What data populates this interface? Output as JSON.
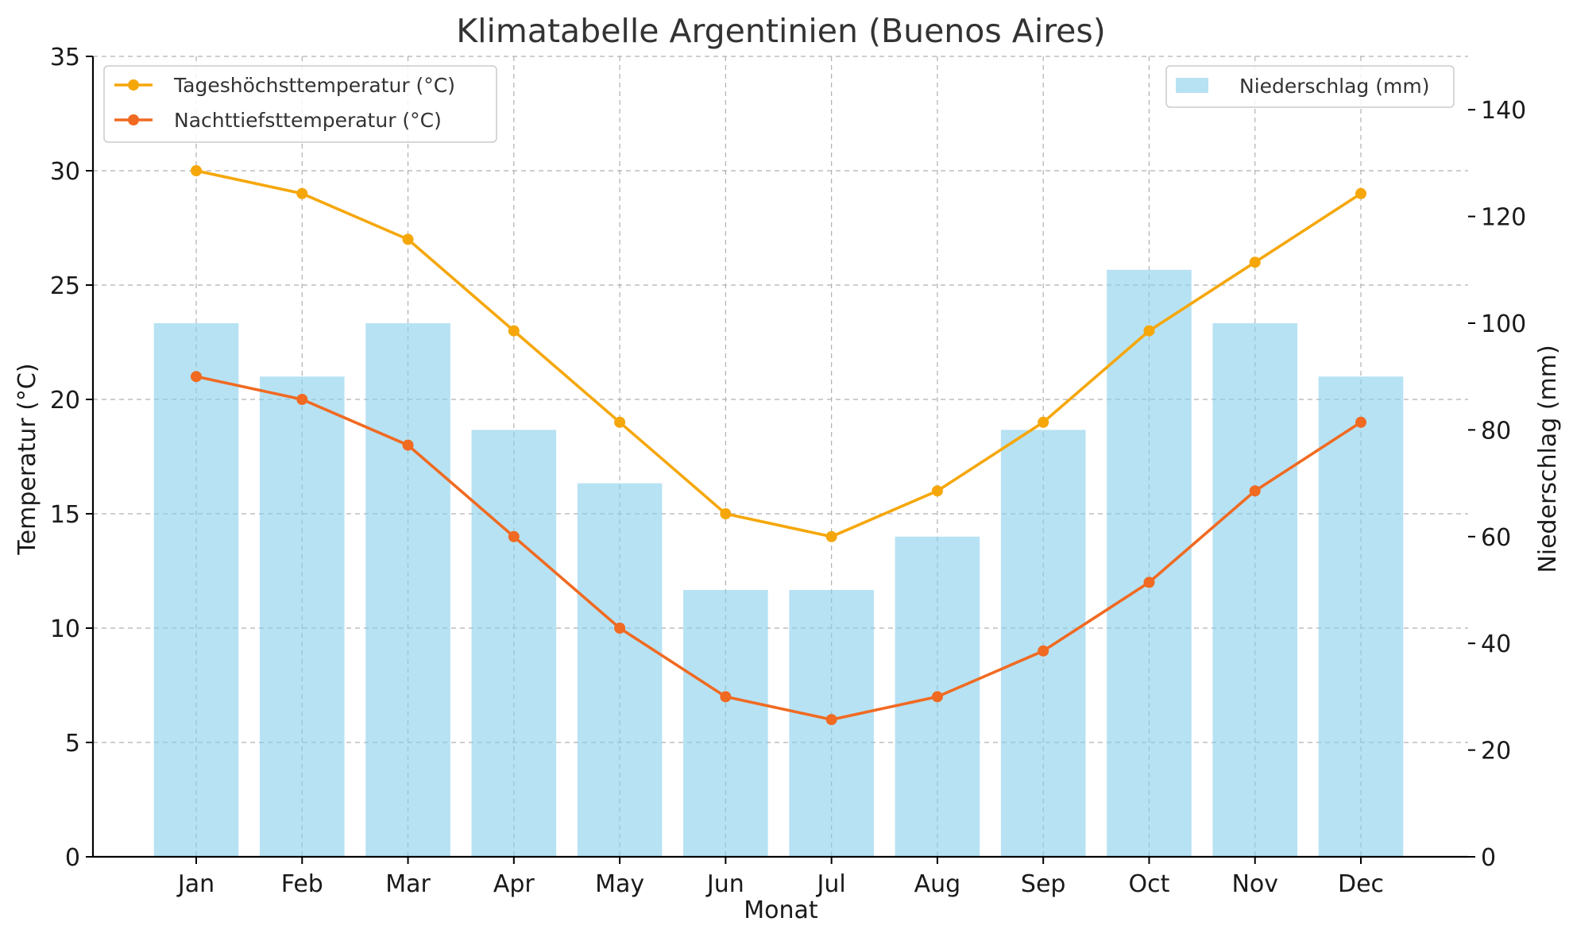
{
  "chart_data": {
    "type": "bar+line",
    "title": "Klimatabelle Argentinien (Buenos Aires)",
    "xlabel": "Monat",
    "ylabel_left": "Temperatur (°C)",
    "ylabel_right": "Niederschlag (mm)",
    "categories": [
      "Jan",
      "Feb",
      "Mar",
      "Apr",
      "May",
      "Jun",
      "Jul",
      "Aug",
      "Sep",
      "Oct",
      "Nov",
      "Dec"
    ],
    "ylim_left": [
      0,
      35
    ],
    "yticks_left": [
      0,
      5,
      10,
      15,
      20,
      25,
      30,
      35
    ],
    "ylim_right": [
      0,
      150
    ],
    "yticks_right": [
      0,
      20,
      40,
      60,
      80,
      100,
      120,
      140
    ],
    "grid": true,
    "series": [
      {
        "name": "Tageshöchsttemperatur (°C)",
        "type": "line",
        "axis": "left",
        "color": "#f5a70a",
        "values": [
          30,
          29,
          27,
          23,
          19,
          15,
          14,
          16,
          19,
          23,
          26,
          29
        ]
      },
      {
        "name": "Nachttiefsttemperatur (°C)",
        "type": "line",
        "axis": "left",
        "color": "#f06a22",
        "values": [
          21,
          20,
          18,
          14,
          10,
          7,
          6,
          7,
          9,
          12,
          16,
          19
        ]
      },
      {
        "name": "Niederschlag (mm)",
        "type": "bar",
        "axis": "right",
        "color": "#87ceeb",
        "opacity": 0.6,
        "values": [
          100,
          90,
          100,
          80,
          70,
          50,
          50,
          60,
          80,
          110,
          100,
          90
        ]
      }
    ],
    "legend_lines_position": "upper-left",
    "legend_bars_position": "upper-right"
  }
}
